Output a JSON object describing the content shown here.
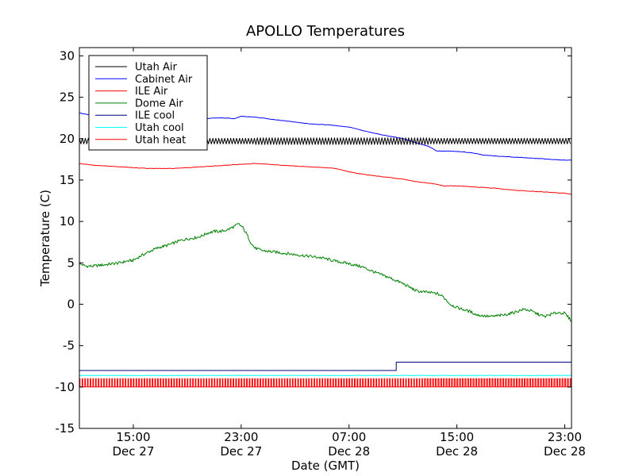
{
  "chart_data": {
    "type": "line",
    "title": "APOLLO Temperatures",
    "xlabel": "Date (GMT)",
    "ylabel": "Temperature (C)",
    "ylim": [
      -15,
      31
    ],
    "xlim_hours": [
      11.0,
      47.5
    ],
    "grid": false,
    "legend_position": "top-left",
    "yticks": [
      -15,
      -10,
      -5,
      0,
      5,
      10,
      15,
      20,
      25,
      30
    ],
    "xticks": [
      {
        "hour": 15,
        "time": "15:00",
        "date": "Dec 27"
      },
      {
        "hour": 23,
        "time": "23:00",
        "date": "Dec 27"
      },
      {
        "hour": 31,
        "time": "07:00",
        "date": "Dec 28"
      },
      {
        "hour": 39,
        "time": "15:00",
        "date": "Dec 28"
      },
      {
        "hour": 47,
        "time": "23:00",
        "date": "Dec 28"
      }
    ],
    "series": [
      {
        "name": "Utah Air",
        "color": "#000000",
        "style": "oscillating",
        "base": 19.7,
        "amplitude": 0.45,
        "period_hours": 0.22,
        "points": [
          [
            11.0,
            19.7
          ],
          [
            47.5,
            19.7
          ]
        ]
      },
      {
        "name": "Cabinet Air",
        "color": "#0000ff",
        "style": "line",
        "points": [
          [
            11.0,
            23.1
          ],
          [
            12.0,
            22.8
          ],
          [
            13.0,
            22.6
          ],
          [
            14.0,
            22.5
          ],
          [
            15.0,
            22.5
          ],
          [
            16.0,
            22.4
          ],
          [
            17.0,
            22.3
          ],
          [
            18.0,
            22.3
          ],
          [
            19.0,
            22.3
          ],
          [
            20.0,
            22.4
          ],
          [
            21.0,
            22.5
          ],
          [
            22.0,
            22.5
          ],
          [
            22.5,
            22.4
          ],
          [
            23.0,
            22.7
          ],
          [
            24.0,
            22.6
          ],
          [
            25.0,
            22.4
          ],
          [
            26.0,
            22.2
          ],
          [
            27.0,
            22.0
          ],
          [
            28.0,
            21.8
          ],
          [
            29.0,
            21.7
          ],
          [
            30.0,
            21.6
          ],
          [
            31.0,
            21.4
          ],
          [
            32.0,
            21.0
          ],
          [
            33.0,
            20.6
          ],
          [
            34.0,
            20.3
          ],
          [
            35.0,
            20.0
          ],
          [
            36.0,
            19.5
          ],
          [
            37.0,
            19.0
          ],
          [
            37.5,
            18.5
          ],
          [
            38.5,
            18.5
          ],
          [
            39.5,
            18.4
          ],
          [
            40.5,
            18.2
          ],
          [
            41.0,
            18.0
          ],
          [
            42.0,
            17.9
          ],
          [
            43.0,
            17.8
          ],
          [
            44.0,
            17.7
          ],
          [
            45.0,
            17.6
          ],
          [
            46.0,
            17.5
          ],
          [
            47.0,
            17.4
          ],
          [
            47.5,
            17.4
          ]
        ]
      },
      {
        "name": "ILE Air",
        "color": "#ff0000",
        "style": "line",
        "points": [
          [
            11.0,
            17.0
          ],
          [
            12.0,
            16.8
          ],
          [
            13.0,
            16.7
          ],
          [
            14.0,
            16.6
          ],
          [
            15.0,
            16.5
          ],
          [
            16.0,
            16.4
          ],
          [
            17.0,
            16.4
          ],
          [
            18.0,
            16.4
          ],
          [
            19.0,
            16.5
          ],
          [
            20.0,
            16.6
          ],
          [
            21.0,
            16.7
          ],
          [
            22.0,
            16.8
          ],
          [
            23.0,
            16.9
          ],
          [
            24.0,
            17.0
          ],
          [
            25.0,
            16.9
          ],
          [
            26.0,
            16.8
          ],
          [
            27.0,
            16.7
          ],
          [
            28.0,
            16.6
          ],
          [
            29.0,
            16.5
          ],
          [
            30.0,
            16.4
          ],
          [
            31.0,
            16.0
          ],
          [
            32.0,
            15.7
          ],
          [
            33.0,
            15.5
          ],
          [
            34.0,
            15.3
          ],
          [
            35.0,
            15.1
          ],
          [
            36.0,
            14.8
          ],
          [
            37.0,
            14.6
          ],
          [
            37.5,
            14.5
          ],
          [
            38.0,
            14.3
          ],
          [
            39.0,
            14.3
          ],
          [
            40.0,
            14.2
          ],
          [
            41.0,
            14.1
          ],
          [
            42.0,
            14.0
          ],
          [
            43.0,
            13.8
          ],
          [
            44.0,
            13.7
          ],
          [
            45.0,
            13.6
          ],
          [
            46.0,
            13.5
          ],
          [
            47.0,
            13.4
          ],
          [
            47.5,
            13.3
          ]
        ]
      },
      {
        "name": "Dome Air",
        "color": "#008000",
        "style": "line",
        "points": [
          [
            11.0,
            4.9
          ],
          [
            11.5,
            4.6
          ],
          [
            12.0,
            4.6
          ],
          [
            12.5,
            4.7
          ],
          [
            13.0,
            4.8
          ],
          [
            13.5,
            4.9
          ],
          [
            14.0,
            5.0
          ],
          [
            14.5,
            5.2
          ],
          [
            15.0,
            5.3
          ],
          [
            15.5,
            5.8
          ],
          [
            16.0,
            6.2
          ],
          [
            16.5,
            6.6
          ],
          [
            17.0,
            6.9
          ],
          [
            17.5,
            7.1
          ],
          [
            18.0,
            7.4
          ],
          [
            18.5,
            7.7
          ],
          [
            19.0,
            7.9
          ],
          [
            19.5,
            8.0
          ],
          [
            20.0,
            8.2
          ],
          [
            20.5,
            8.6
          ],
          [
            21.0,
            8.8
          ],
          [
            21.5,
            8.8
          ],
          [
            22.0,
            9.0
          ],
          [
            22.5,
            9.4
          ],
          [
            22.8,
            9.7
          ],
          [
            23.1,
            9.3
          ],
          [
            23.4,
            8.5
          ],
          [
            23.7,
            7.5
          ],
          [
            24.0,
            6.8
          ],
          [
            24.5,
            6.5
          ],
          [
            25.0,
            6.4
          ],
          [
            25.5,
            6.3
          ],
          [
            26.0,
            6.2
          ],
          [
            27.0,
            6.0
          ],
          [
            28.0,
            5.8
          ],
          [
            29.0,
            5.6
          ],
          [
            30.0,
            5.2
          ],
          [
            31.0,
            4.9
          ],
          [
            32.0,
            4.5
          ],
          [
            33.0,
            3.8
          ],
          [
            34.0,
            3.2
          ],
          [
            35.0,
            2.5
          ],
          [
            36.0,
            1.6
          ],
          [
            37.0,
            1.4
          ],
          [
            37.5,
            1.3
          ],
          [
            38.0,
            0.9
          ],
          [
            38.5,
            0.0
          ],
          [
            39.0,
            -0.4
          ],
          [
            40.0,
            -0.9
          ],
          [
            40.5,
            -1.3
          ],
          [
            41.0,
            -1.4
          ],
          [
            41.5,
            -1.5
          ],
          [
            42.0,
            -1.4
          ],
          [
            42.5,
            -1.3
          ],
          [
            43.0,
            -1.1
          ],
          [
            44.0,
            -0.6
          ],
          [
            44.5,
            -0.8
          ],
          [
            45.0,
            -1.2
          ],
          [
            45.5,
            -1.5
          ],
          [
            46.0,
            -1.2
          ],
          [
            46.5,
            -1.0
          ],
          [
            47.0,
            -1.1
          ],
          [
            47.5,
            -2.0
          ]
        ]
      },
      {
        "name": "ILE cool",
        "color": "#000080",
        "style": "step",
        "points": [
          [
            11.0,
            -8.0
          ],
          [
            34.5,
            -8.0
          ],
          [
            34.5,
            -7.0
          ],
          [
            47.5,
            -7.0
          ]
        ]
      },
      {
        "name": "Utah cool",
        "color": "#00ffff",
        "style": "line",
        "points": [
          [
            11.0,
            -8.6
          ],
          [
            47.5,
            -8.6
          ]
        ]
      },
      {
        "name": "Utah heat",
        "color": "#ff0000",
        "style": "pulses",
        "low": -10.0,
        "high": -9.0,
        "period_hours": 0.2,
        "points": [
          [
            11.0,
            -10.0
          ],
          [
            47.5,
            -10.0
          ]
        ]
      }
    ]
  }
}
